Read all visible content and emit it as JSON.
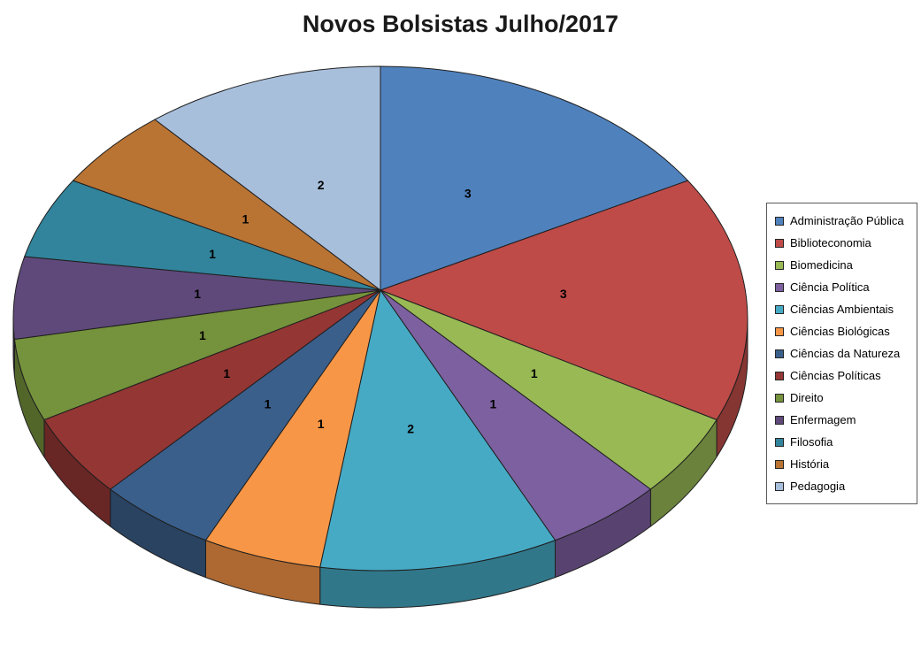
{
  "title": "Novos Bolsistas Julho/2017",
  "chart_data": {
    "type": "pie",
    "style": "3d-pie",
    "title": "Novos Bolsistas Julho/2017",
    "legend_position": "right",
    "direction": "clockwise",
    "start_angle_deg": 0,
    "total": 19,
    "categories": [
      "Administração Pública",
      "Biblioteconomia",
      "Biomedicina",
      "Ciência Política",
      "Ciências Ambientais",
      "Ciências Biológicas",
      "Ciências da Natureza",
      "Ciências Políticas",
      "Direito",
      "Enfermagem",
      "Filosofia",
      "História",
      "Pedagogia"
    ],
    "values": [
      3,
      3,
      1,
      1,
      2,
      1,
      1,
      1,
      1,
      1,
      1,
      1,
      2
    ],
    "labels_shown": [
      "3",
      "3",
      "1",
      "1",
      "2",
      "1",
      "1",
      "1",
      "1",
      "1",
      "1",
      "1",
      "2"
    ],
    "colors": [
      "#4F81BD",
      "#BE4B48",
      "#98B954",
      "#7D60A0",
      "#46AAC5",
      "#F79646",
      "#3A5F8B",
      "#943634",
      "#75923C",
      "#5F497A",
      "#31849B",
      "#B97333",
      "#A8BFDC"
    ],
    "background_color": "#FFFFFF",
    "slice_outline_color": "#1F1F1F"
  }
}
